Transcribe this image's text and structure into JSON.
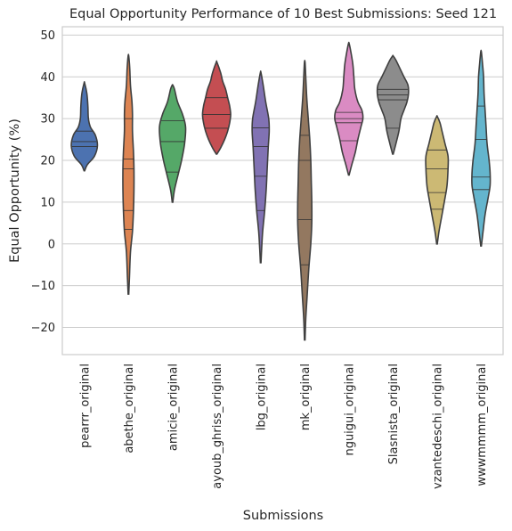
{
  "chart_data": {
    "type": "violin",
    "title": "Equal Opportunity Performance of 10 Best Submissions: Seed 121",
    "xlabel": "Submissions",
    "ylabel": "Equal Opportunity (%)",
    "ylim": [
      -26.5,
      52
    ],
    "yticks": [
      -20,
      -10,
      0,
      10,
      20,
      30,
      40,
      50
    ],
    "grid": true,
    "series": [
      {
        "name": "pearrr_original",
        "color": "#4c72b0",
        "profile": [
          [
            17.5,
            0.3
          ],
          [
            19,
            3
          ],
          [
            21,
            10
          ],
          [
            23.5,
            13
          ],
          [
            26,
            11
          ],
          [
            28,
            6
          ],
          [
            30,
            4
          ],
          [
            33,
            3.5
          ],
          [
            36,
            2.5
          ],
          [
            38.5,
            0.3
          ]
        ],
        "quartiles": [
          23.3,
          24.5,
          27.0
        ]
      },
      {
        "name": "abethe_original",
        "color": "#dd8452",
        "profile": [
          [
            -12,
            0.3
          ],
          [
            -8,
            1
          ],
          [
            -2,
            2
          ],
          [
            3,
            4
          ],
          [
            8,
            5
          ],
          [
            13,
            5.5
          ],
          [
            18,
            5.5
          ],
          [
            22,
            5
          ],
          [
            27,
            4
          ],
          [
            31,
            4
          ],
          [
            34,
            3.5
          ],
          [
            38,
            2
          ],
          [
            42,
            1.3
          ],
          [
            45,
            0.3
          ]
        ],
        "quartiles": [
          3.5,
          8.0,
          18.0,
          20.3,
          30.0
        ]
      },
      {
        "name": "amicie_original",
        "color": "#55a868",
        "profile": [
          [
            10,
            0.3
          ],
          [
            13,
            2
          ],
          [
            17,
            6
          ],
          [
            20,
            9
          ],
          [
            24,
            12
          ],
          [
            28,
            13
          ],
          [
            31,
            10
          ],
          [
            34,
            5
          ],
          [
            37,
            2
          ],
          [
            38,
            0.3
          ]
        ],
        "quartiles": [
          17.2,
          24.5,
          29.5
        ]
      },
      {
        "name": "ayoub_ghriss_original",
        "color": "#c44e52",
        "profile": [
          [
            21.5,
            0.3
          ],
          [
            23,
            4
          ],
          [
            25,
            8
          ],
          [
            27,
            11
          ],
          [
            29,
            13
          ],
          [
            31,
            14
          ],
          [
            33,
            13
          ],
          [
            35,
            11
          ],
          [
            37,
            9
          ],
          [
            39,
            6
          ],
          [
            41,
            4
          ],
          [
            43.5,
            0.3
          ]
        ],
        "quartiles": [
          27.7,
          31.0,
          35.0
        ]
      },
      {
        "name": "lbg_original",
        "color": "#8172b3",
        "profile": [
          [
            -4.5,
            0.3
          ],
          [
            -1,
            1
          ],
          [
            3,
            2
          ],
          [
            8,
            4
          ],
          [
            13,
            5.5
          ],
          [
            18,
            6.5
          ],
          [
            23,
            7.5
          ],
          [
            27,
            8.5
          ],
          [
            30,
            8
          ],
          [
            34,
            5
          ],
          [
            38,
            2.5
          ],
          [
            41,
            0.3
          ]
        ],
        "quartiles": [
          8.0,
          16.2,
          23.3,
          27.8
        ]
      },
      {
        "name": "mk_original",
        "color": "#937860",
        "profile": [
          [
            -23,
            0.3
          ],
          [
            -18,
            1
          ],
          [
            -12,
            2.5
          ],
          [
            -6,
            4
          ],
          [
            0,
            6
          ],
          [
            5,
            7
          ],
          [
            10,
            7
          ],
          [
            15,
            6.5
          ],
          [
            20,
            6
          ],
          [
            25,
            5
          ],
          [
            30,
            3.5
          ],
          [
            35,
            2
          ],
          [
            40,
            1
          ],
          [
            43.5,
            0.3
          ]
        ],
        "quartiles": [
          -5.0,
          5.8,
          20.0,
          26.0
        ]
      },
      {
        "name": "nguigui_original",
        "color": "#da8bc3",
        "profile": [
          [
            16.5,
            0.3
          ],
          [
            19,
            3
          ],
          [
            22,
            6.5
          ],
          [
            25,
            9
          ],
          [
            28,
            12
          ],
          [
            30,
            14
          ],
          [
            32,
            13
          ],
          [
            34,
            9
          ],
          [
            37,
            6
          ],
          [
            40,
            5
          ],
          [
            43,
            4
          ],
          [
            46,
            2
          ],
          [
            48,
            0.3
          ]
        ],
        "quartiles": [
          24.7,
          29.0,
          30.0,
          31.5
        ]
      },
      {
        "name": "Slasnista_original",
        "color": "#8c8c8c",
        "profile": [
          [
            21.5,
            0.3
          ],
          [
            24,
            3
          ],
          [
            27,
            6
          ],
          [
            30,
            8
          ],
          [
            32,
            11
          ],
          [
            34,
            14
          ],
          [
            36,
            15.5
          ],
          [
            38,
            15
          ],
          [
            40,
            11
          ],
          [
            42,
            7
          ],
          [
            44,
            3
          ],
          [
            45,
            0.3
          ]
        ],
        "quartiles": [
          27.7,
          34.5,
          35.7,
          37.0
        ]
      },
      {
        "name": "vzantedeschi_original",
        "color": "#ccb974",
        "profile": [
          [
            0,
            0.3
          ],
          [
            3,
            2
          ],
          [
            7,
            5
          ],
          [
            11,
            8
          ],
          [
            14,
            10
          ],
          [
            18,
            11
          ],
          [
            21,
            11
          ],
          [
            24,
            8
          ],
          [
            27,
            5
          ],
          [
            29,
            3
          ],
          [
            30.5,
            0.3
          ]
        ],
        "quartiles": [
          8.3,
          12.3,
          18.0,
          22.5
        ]
      },
      {
        "name": "wwwmmmm_original",
        "color": "#64b5cd",
        "profile": [
          [
            -0.5,
            0.3
          ],
          [
            3,
            2
          ],
          [
            7,
            4
          ],
          [
            11,
            7
          ],
          [
            14,
            9
          ],
          [
            17,
            9
          ],
          [
            20,
            8
          ],
          [
            24,
            6
          ],
          [
            28,
            5
          ],
          [
            32,
            4
          ],
          [
            36,
            3
          ],
          [
            40,
            2.5
          ],
          [
            43,
            1.5
          ],
          [
            46,
            0.3
          ]
        ],
        "quartiles": [
          13.0,
          16.0,
          25.0,
          33.0
        ]
      }
    ]
  }
}
